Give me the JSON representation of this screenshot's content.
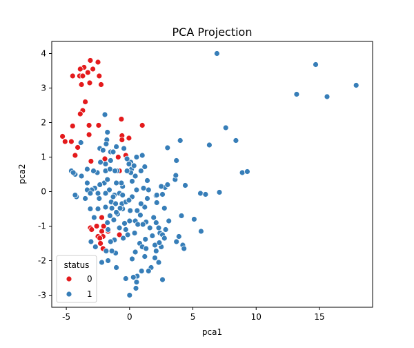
{
  "chart_data": {
    "type": "scatter",
    "title": "PCA Projection",
    "xlabel": "pca1",
    "ylabel": "pca2",
    "xlim": [
      -6.15,
      19.2
    ],
    "ylim": [
      -3.35,
      4.35
    ],
    "xticks": [
      -5,
      0,
      5,
      10,
      15
    ],
    "yticks": [
      -3,
      -2,
      -1,
      0,
      1,
      2,
      3,
      4
    ],
    "grid": false,
    "legend": {
      "title": "status",
      "location": "lower-left",
      "entries": [
        "0",
        "1"
      ]
    },
    "series": [
      {
        "name": "0",
        "color": "#e41a1c",
        "points": [
          [
            -3.1,
            3.8
          ],
          [
            -2.5,
            3.75
          ],
          [
            -3.6,
            3.6
          ],
          [
            -2.9,
            3.55
          ],
          [
            -3.9,
            3.55
          ],
          [
            -3.3,
            3.45
          ],
          [
            -2.4,
            3.35
          ],
          [
            -4.5,
            3.35
          ],
          [
            -3.95,
            3.35
          ],
          [
            -3.7,
            3.35
          ],
          [
            -3.15,
            3.15
          ],
          [
            -3.8,
            3.1
          ],
          [
            -2.25,
            3.1
          ],
          [
            -3.5,
            2.6
          ],
          [
            -3.7,
            2.35
          ],
          [
            -3.9,
            2.25
          ],
          [
            -0.65,
            2.1
          ],
          [
            -4.5,
            1.9
          ],
          [
            -3.2,
            1.92
          ],
          [
            -2.45,
            1.92
          ],
          [
            1.0,
            1.92
          ],
          [
            -3.2,
            1.65
          ],
          [
            -0.6,
            1.62
          ],
          [
            -0.05,
            1.55
          ],
          [
            -0.6,
            1.5
          ],
          [
            -5.3,
            1.6
          ],
          [
            -4.6,
            1.45
          ],
          [
            -5.1,
            1.45
          ],
          [
            -4.1,
            1.28
          ],
          [
            -4.3,
            1.05
          ],
          [
            -1.95,
            0.95
          ],
          [
            -0.3,
            1.05
          ],
          [
            -0.9,
            1.0
          ],
          [
            -0.8,
            0.6
          ],
          [
            -3.05,
            0.88
          ],
          [
            -2.2,
            -0.75
          ],
          [
            -2.05,
            -1.0
          ],
          [
            -3.1,
            -1.05
          ],
          [
            -2.6,
            -1.0
          ],
          [
            -3.0,
            -1.1
          ],
          [
            -1.7,
            -1.15
          ],
          [
            -2.2,
            -1.15
          ],
          [
            -0.8,
            -1.25
          ],
          [
            -2.5,
            -1.3
          ],
          [
            -2.1,
            -1.3
          ],
          [
            -2.35,
            -1.35
          ],
          [
            -2.3,
            -1.5
          ],
          [
            -2.1,
            -1.65
          ]
        ]
      },
      {
        "name": "1",
        "color": "#377eb8",
        "points": [
          [
            6.9,
            4.0
          ],
          [
            14.7,
            3.68
          ],
          [
            17.9,
            3.08
          ],
          [
            13.2,
            2.82
          ],
          [
            15.6,
            2.75
          ],
          [
            7.6,
            1.85
          ],
          [
            8.4,
            1.48
          ],
          [
            6.3,
            1.35
          ],
          [
            4.0,
            1.48
          ],
          [
            3.0,
            1.27
          ],
          [
            3.7,
            0.9
          ],
          [
            8.9,
            0.55
          ],
          [
            9.3,
            0.58
          ],
          [
            5.6,
            -0.05
          ],
          [
            6.0,
            -0.08
          ],
          [
            7.1,
            -0.02
          ],
          [
            3.6,
            0.35
          ],
          [
            3.65,
            0.47
          ],
          [
            4.4,
            0.18
          ],
          [
            2.8,
            0.12
          ],
          [
            3.0,
            0.2
          ],
          [
            2.5,
            0.15
          ],
          [
            1.4,
            0.32
          ],
          [
            1.5,
            0.05
          ],
          [
            1.1,
            0.1
          ],
          [
            1.4,
            -0.2
          ],
          [
            2.6,
            -0.08
          ],
          [
            2.1,
            -0.12
          ],
          [
            2.15,
            -0.32
          ],
          [
            2.75,
            -0.48
          ],
          [
            4.1,
            -0.7
          ],
          [
            3.1,
            -0.85
          ],
          [
            2.1,
            -0.9
          ],
          [
            1.9,
            -0.75
          ],
          [
            2.3,
            -1.05
          ],
          [
            2.85,
            -1.1
          ],
          [
            2.4,
            -1.2
          ],
          [
            2.6,
            -1.25
          ],
          [
            3.9,
            -1.3
          ],
          [
            3.7,
            -1.45
          ],
          [
            4.2,
            -1.55
          ],
          [
            5.65,
            -1.15
          ],
          [
            5.1,
            -0.8
          ],
          [
            1.2,
            -0.45
          ],
          [
            0.6,
            -0.55
          ],
          [
            0.85,
            -0.68
          ],
          [
            0.45,
            -0.85
          ],
          [
            0.65,
            -0.95
          ],
          [
            1.3,
            -0.88
          ],
          [
            1.6,
            -1.05
          ],
          [
            0.0,
            -0.85
          ],
          [
            -0.4,
            -0.92
          ],
          [
            -0.3,
            -1.1
          ],
          [
            0.4,
            -1.2
          ],
          [
            0.8,
            -1.5
          ],
          [
            1.0,
            -1.6
          ],
          [
            1.3,
            -1.65
          ],
          [
            2.0,
            -1.55
          ],
          [
            2.5,
            -1.6
          ],
          [
            2.1,
            -1.72
          ],
          [
            1.2,
            -1.88
          ],
          [
            2.0,
            -1.92
          ],
          [
            2.3,
            -2.05
          ],
          [
            1.7,
            -2.2
          ],
          [
            0.95,
            -2.3
          ],
          [
            0.6,
            -2.45
          ],
          [
            0.3,
            -2.48
          ],
          [
            -0.3,
            -2.52
          ],
          [
            0.55,
            -2.62
          ],
          [
            0.5,
            -2.8
          ],
          [
            0.0,
            -3.0
          ],
          [
            2.6,
            -2.55
          ],
          [
            1.5,
            -2.3
          ],
          [
            -1.2,
            -1.4
          ],
          [
            -1.5,
            -1.45
          ],
          [
            -1.1,
            -1.78
          ],
          [
            -1.85,
            -1.72
          ],
          [
            -1.4,
            -1.72
          ],
          [
            -1.7,
            -2.0
          ],
          [
            -2.2,
            -2.05
          ],
          [
            -1.05,
            -2.2
          ],
          [
            -3.05,
            -1.45
          ],
          [
            -2.7,
            -1.6
          ],
          [
            -3.1,
            -0.5
          ],
          [
            -2.8,
            -0.75
          ],
          [
            -2.5,
            -0.5
          ],
          [
            -1.9,
            -0.45
          ],
          [
            -2.4,
            -0.2
          ],
          [
            -1.45,
            -0.3
          ],
          [
            -1.4,
            -0.48
          ],
          [
            -0.95,
            -0.65
          ],
          [
            -1.25,
            -0.82
          ],
          [
            -0.6,
            -0.35
          ],
          [
            -0.3,
            -0.3
          ],
          [
            -0.55,
            -0.5
          ],
          [
            -0.55,
            0.15
          ],
          [
            -0.8,
            -0.05
          ],
          [
            -1.2,
            -0.1
          ],
          [
            -1.6,
            0.05
          ],
          [
            -1.9,
            -0.05
          ],
          [
            -2.0,
            0.25
          ],
          [
            -2.35,
            0.2
          ],
          [
            -2.75,
            0.1
          ],
          [
            -3.0,
            0.05
          ],
          [
            -3.35,
            0.05
          ],
          [
            -3.5,
            -0.2
          ],
          [
            -3.1,
            -0.05
          ],
          [
            -3.35,
            0.25
          ],
          [
            -2.55,
            0.55
          ],
          [
            -2.85,
            0.6
          ],
          [
            -1.9,
            0.6
          ],
          [
            -1.55,
            0.65
          ],
          [
            -1.0,
            0.6
          ],
          [
            -1.15,
            0.6
          ],
          [
            0.1,
            0.85
          ],
          [
            0.15,
            0.65
          ],
          [
            0.1,
            0.55
          ],
          [
            0.45,
            0.45
          ],
          [
            0.9,
            0.6
          ],
          [
            0.2,
            0.3
          ],
          [
            -4.6,
            0.6
          ],
          [
            -4.3,
            0.5
          ],
          [
            -4.45,
            0.55
          ],
          [
            -3.8,
            0.45
          ],
          [
            -4.2,
            -0.15
          ],
          [
            -3.35,
            0.65
          ],
          [
            -4.3,
            -0.1
          ],
          [
            -0.2,
            0.6
          ],
          [
            -0.65,
            0.25
          ],
          [
            -1.75,
            0.35
          ],
          [
            -3.85,
            1.42
          ],
          [
            -1.95,
            2.23
          ],
          [
            -1.75,
            1.72
          ],
          [
            -1.8,
            1.5
          ],
          [
            -1.85,
            1.38
          ],
          [
            -2.35,
            1.25
          ],
          [
            -2.1,
            1.2
          ],
          [
            -1.5,
            1.15
          ],
          [
            -1.3,
            1.15
          ],
          [
            -1.05,
            1.3
          ],
          [
            -2.3,
            0.85
          ],
          [
            -1.9,
            0.8
          ],
          [
            -1.5,
            0.9
          ],
          [
            -0.05,
            0.8
          ],
          [
            -0.2,
            0.95
          ],
          [
            0.35,
            0.75
          ],
          [
            1.2,
            0.72
          ],
          [
            1.0,
            1.05
          ],
          [
            0.55,
            1.0
          ],
          [
            -0.45,
            1.25
          ],
          [
            -1.75,
            0.35
          ],
          [
            -1.05,
            0.25
          ],
          [
            -0.55,
            -0.1
          ],
          [
            0.55,
            0.05
          ],
          [
            0.9,
            -0.35
          ],
          [
            0.2,
            -0.15
          ],
          [
            -0.05,
            -0.25
          ],
          [
            0.05,
            -0.55
          ],
          [
            -0.75,
            -0.48
          ],
          [
            -1.05,
            -0.6
          ],
          [
            -1.55,
            -0.7
          ],
          [
            -1.75,
            -0.9
          ],
          [
            -0.5,
            -1.35
          ],
          [
            -0.15,
            -1.25
          ],
          [
            0.45,
            -1.75
          ],
          [
            0.2,
            -1.95
          ],
          [
            -2.5,
            -0.05
          ],
          [
            -1.3,
            -0.15
          ],
          [
            -1.1,
            -0.35
          ],
          [
            -1.7,
            -1.1
          ],
          [
            -0.8,
            -1.05
          ],
          [
            1.05,
            -0.95
          ],
          [
            1.25,
            -1.38
          ],
          [
            1.8,
            -1.28
          ],
          [
            2.35,
            -1.48
          ],
          [
            2.75,
            -1.35
          ],
          [
            4.3,
            -1.65
          ],
          [
            2.15,
            -0.1
          ]
        ]
      }
    ]
  }
}
